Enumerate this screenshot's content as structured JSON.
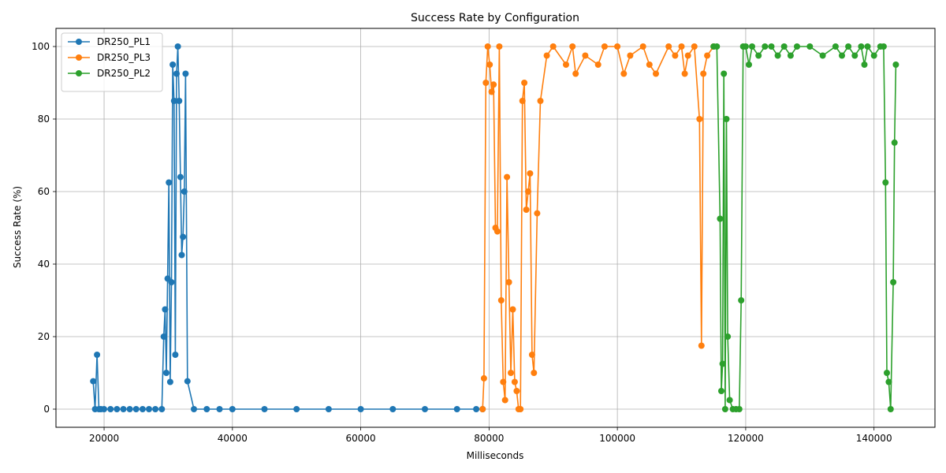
{
  "chart_data": {
    "type": "line",
    "title": "Success Rate by Configuration",
    "xlabel": "Milliseconds",
    "ylabel": "Success Rate (%)",
    "xlim": [
      12500,
      149500
    ],
    "ylim": [
      -5,
      105
    ],
    "xticks": [
      20000,
      40000,
      60000,
      80000,
      100000,
      120000,
      140000
    ],
    "yticks": [
      0,
      20,
      40,
      60,
      80,
      100
    ],
    "grid": true,
    "legend_position": "top-left",
    "series": [
      {
        "name": "DR250_PL1",
        "color": "#1f77b4",
        "x": [
          18300,
          18600,
          18900,
          19200,
          19500,
          20000,
          21000,
          22000,
          23000,
          24000,
          25000,
          26000,
          27000,
          28000,
          29000,
          29300,
          29500,
          29700,
          29900,
          30100,
          30300,
          30500,
          30700,
          30900,
          31100,
          31300,
          31500,
          31700,
          31900,
          32100,
          32300,
          32500,
          32700,
          33000,
          34000,
          36000,
          38000,
          40000,
          45000,
          50000,
          55000,
          60000,
          65000,
          70000,
          75000,
          78000,
          79000
        ],
        "y": [
          7.7,
          0,
          15,
          0,
          0,
          0,
          0,
          0,
          0,
          0,
          0,
          0,
          0,
          0,
          0,
          20,
          27.5,
          10,
          36,
          62.5,
          7.5,
          35,
          95,
          85,
          15,
          92.5,
          100,
          85,
          64,
          42.5,
          47.5,
          60,
          92.5,
          7.7,
          0,
          0,
          0,
          0,
          0,
          0,
          0,
          0,
          0,
          0,
          0,
          0,
          0
        ]
      },
      {
        "name": "DR250_PL3",
        "color": "#ff7f0e",
        "x": [
          79000,
          79200,
          79500,
          79800,
          80100,
          80400,
          80700,
          81000,
          81300,
          81600,
          81900,
          82200,
          82500,
          82800,
          83100,
          83400,
          83700,
          84000,
          84300,
          84600,
          84900,
          85200,
          85500,
          85800,
          86100,
          86400,
          86700,
          87000,
          87500,
          88000,
          89000,
          90000,
          92000,
          93000,
          93500,
          95000,
          97000,
          98000,
          100000,
          101000,
          102000,
          104000,
          105000,
          106000,
          108000,
          109000,
          110000,
          110500,
          111000,
          112000,
          112800,
          113100,
          113400,
          114000,
          115000
        ],
        "y": [
          0,
          8.5,
          90,
          100,
          95,
          87.5,
          89.5,
          50,
          49,
          100,
          30,
          7.5,
          2.5,
          64,
          35,
          10,
          27.5,
          7.5,
          5,
          0,
          0,
          85,
          90,
          55,
          60,
          65,
          15,
          10,
          54,
          85,
          97.5,
          100,
          95,
          100,
          92.5,
          97.5,
          95,
          100,
          100,
          92.5,
          97.5,
          100,
          95,
          92.5,
          100,
          97.5,
          100,
          92.5,
          97.5,
          100,
          80,
          17.5,
          92.5,
          97.5,
          100
        ]
      },
      {
        "name": "DR250_PL2",
        "color": "#2ca02c",
        "x": [
          115000,
          115500,
          116000,
          116200,
          116400,
          116600,
          116800,
          117000,
          117200,
          117500,
          118000,
          118500,
          119000,
          119300,
          119600,
          120000,
          120500,
          121000,
          122000,
          123000,
          124000,
          125000,
          126000,
          127000,
          128000,
          130000,
          132000,
          134000,
          135000,
          136000,
          137000,
          138000,
          138500,
          139000,
          140000,
          141000,
          141500,
          141800,
          142000,
          142300,
          142600,
          143000,
          143200,
          143400
        ],
        "y": [
          100,
          100,
          52.5,
          5,
          12.5,
          92.5,
          0,
          80,
          20,
          2.5,
          0,
          0,
          0,
          30,
          100,
          100,
          95,
          100,
          97.5,
          100,
          100,
          97.5,
          100,
          97.5,
          100,
          100,
          97.5,
          100,
          97.5,
          100,
          97.5,
          100,
          95,
          100,
          97.5,
          100,
          100,
          62.5,
          10,
          7.5,
          0,
          35,
          73.5,
          95
        ]
      }
    ]
  }
}
